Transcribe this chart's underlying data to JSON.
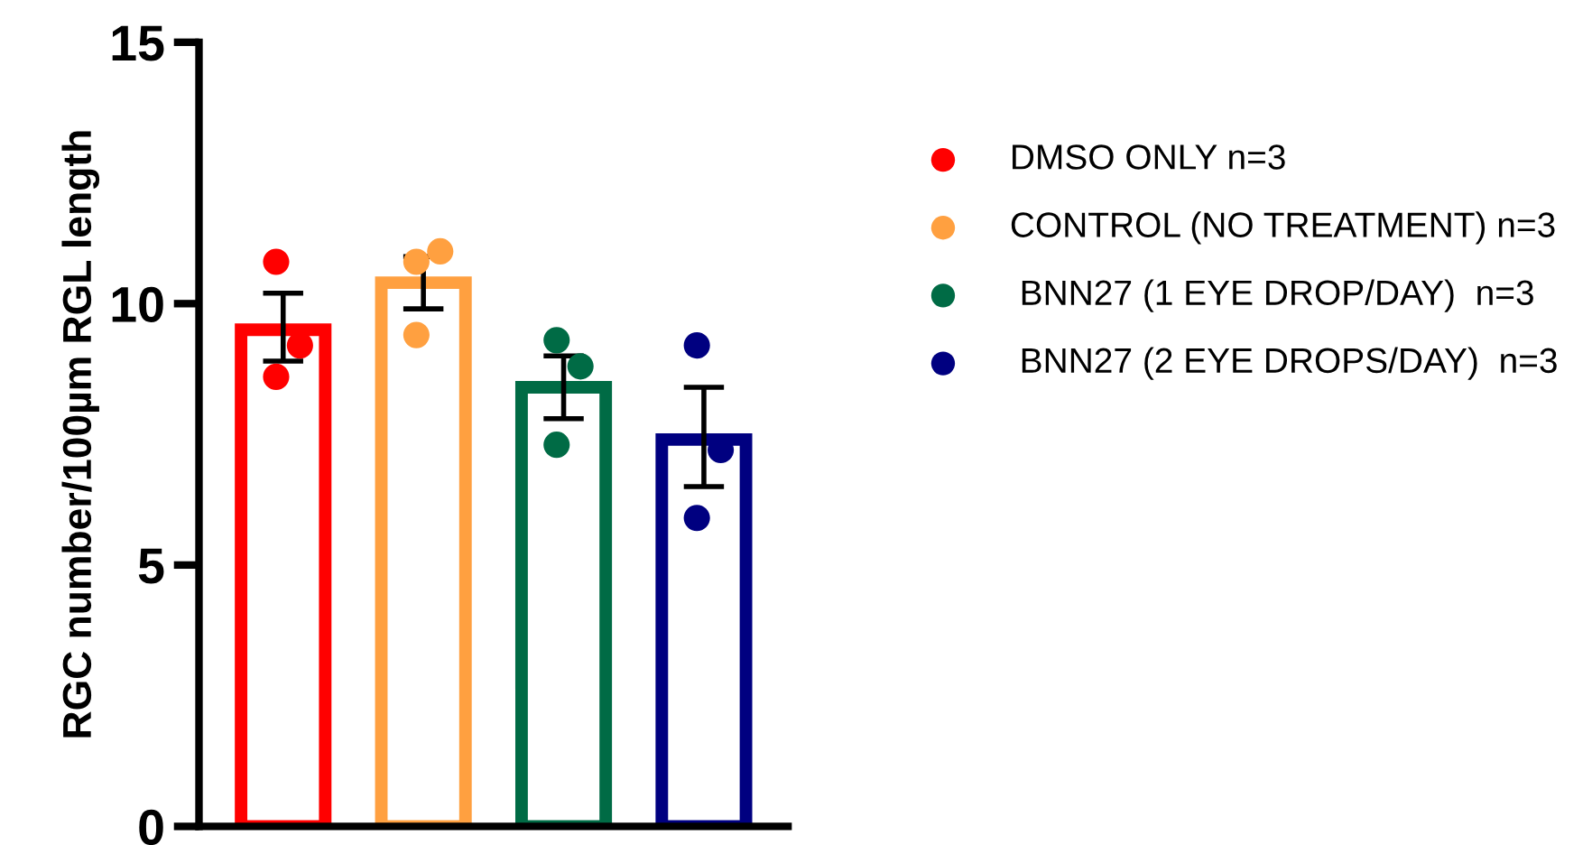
{
  "chart_data": {
    "type": "bar",
    "ylabel": "RGC number/100µm RGL length",
    "categories": [
      null,
      null,
      null,
      null
    ],
    "ylim": [
      0,
      15
    ],
    "yticks": [
      0,
      5,
      10,
      15
    ],
    "grid": false,
    "legend": "right",
    "marker": "circle",
    "series": [
      {
        "name": "DMSO ONLY n=3",
        "color": "#ff0000",
        "values": [
          9.5,
          null,
          null,
          null
        ],
        "errors": [
          [
            8.9,
            10.2
          ],
          null,
          null,
          null
        ]
      },
      {
        "name": "CONTROL (NO TREATMENT) n=3",
        "color": "#ffa040",
        "values": [
          null,
          10.4,
          null,
          null
        ],
        "errors": [
          null,
          [
            9.9,
            10.9
          ],
          null,
          null
        ]
      },
      {
        "name": " BNN27 (1 EYE DROP/DAY)  n=3",
        "color": "#006b45",
        "values": [
          null,
          null,
          8.4,
          null
        ],
        "errors": [
          null,
          null,
          [
            7.8,
            9.0
          ],
          null
        ]
      },
      {
        "name": " BNN27 (2 EYE DROPS/DAY)  n=3",
        "color": "#000080",
        "values": [
          null,
          null,
          null,
          7.4
        ],
        "errors": [
          null,
          null,
          null,
          [
            6.5,
            8.4
          ]
        ]
      },
      {
        "type": "scatter",
        "values": [
          10.8,
          10.8,
          9.3,
          9.2
        ],
        "colors": [
          "#ff0000",
          "#ffa040",
          "#006b45",
          "#000080"
        ]
      },
      {
        "type": "scatter",
        "values": [
          9.2,
          11.0,
          8.8,
          7.2
        ],
        "colors": [
          "#ff0000",
          "#ffa040",
          "#006b45",
          "#000080"
        ]
      },
      {
        "type": "scatter",
        "values": [
          8.6,
          9.4,
          7.3,
          5.9
        ],
        "colors": [
          "#ff0000",
          "#ffa040",
          "#006b45",
          "#000080"
        ]
      }
    ]
  }
}
